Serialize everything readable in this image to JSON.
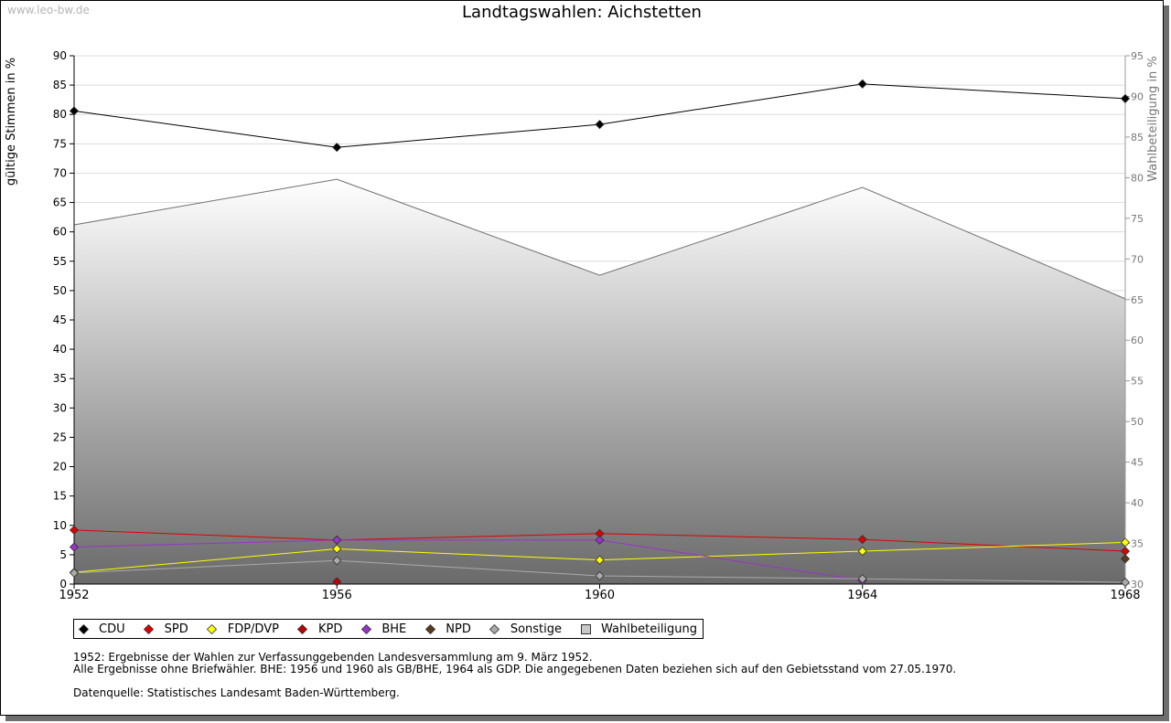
{
  "watermark": "www.leo-bw.de",
  "notes": [
    "1952: Ergebnisse der Wahlen zur Verfassunggebenden Landesversammlung am 9. März 1952.",
    "Alle Ergebnisse ohne Briefwähler. BHE: 1956 und 1960 als GB/BHE, 1964 als GDP. Die angegebenen Daten beziehen sich auf den Gebietsstand vom 27.05.1970.",
    "Datenquelle: Statistisches Landesamt Baden-Württemberg."
  ],
  "chart_data": {
    "type": "line",
    "title": "Landtagswahlen: Aichstetten",
    "ylabel": "gültige Stimmen in %",
    "y2label": "Wahlbeteiligung in %",
    "categories": [
      "1952",
      "1956",
      "1960",
      "1964",
      "1968"
    ],
    "ylim": [
      0,
      90
    ],
    "y2lim": [
      30,
      95
    ],
    "yticks": [
      0,
      5,
      10,
      15,
      20,
      25,
      30,
      35,
      40,
      45,
      50,
      55,
      60,
      65,
      70,
      75,
      80,
      85,
      90
    ],
    "y2ticks": [
      30,
      35,
      40,
      45,
      50,
      55,
      60,
      65,
      70,
      75,
      80,
      85,
      90,
      95
    ],
    "grid": true,
    "legend_position": "bottom",
    "series": [
      {
        "name": "CDU",
        "color": "#000000",
        "values": [
          80.6,
          74.4,
          78.3,
          85.2,
          82.7
        ]
      },
      {
        "name": "SPD",
        "color": "#e00000",
        "values": [
          9.2,
          7.5,
          8.6,
          7.6,
          5.6
        ]
      },
      {
        "name": "FDP/DVP",
        "color": "#ffff00",
        "values": [
          2.0,
          6.0,
          4.1,
          5.6,
          7.1
        ]
      },
      {
        "name": "KPD",
        "color": "#c00000",
        "values": [
          null,
          0.4,
          null,
          null,
          null
        ]
      },
      {
        "name": "BHE",
        "color": "#9933cc",
        "values": [
          6.3,
          7.5,
          7.5,
          0.6,
          null
        ]
      },
      {
        "name": "NPD",
        "color": "#5a3a1a",
        "values": [
          null,
          null,
          null,
          null,
          4.3
        ]
      },
      {
        "name": "Sonstige",
        "color": "#aaaaaa",
        "values": [
          1.9,
          4.0,
          1.4,
          0.9,
          0.3
        ]
      },
      {
        "name": "Wahlbeteiligung",
        "color": "#c8c8c8",
        "axis": "right",
        "values": [
          74.2,
          79.8,
          68.0,
          78.8,
          65.1
        ]
      }
    ]
  }
}
